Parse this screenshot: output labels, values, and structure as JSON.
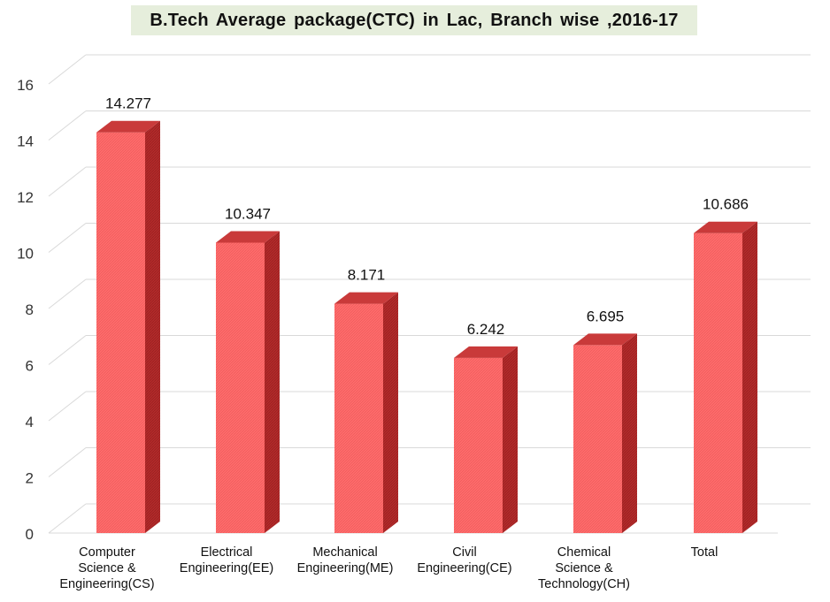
{
  "chart_data": {
    "type": "bar",
    "title": "B.Tech Average  package(CTC)  in  Lac,  Branch  wise  ,2016-17",
    "categories": [
      [
        "Computer",
        "Science &",
        "Engineering(CS)"
      ],
      [
        "Electrical",
        "Engineering(EE)"
      ],
      [
        "Mechanical",
        "Engineering(ME)"
      ],
      [
        "Civil",
        "Engineering(CE)"
      ],
      [
        "Chemical",
        "Science &",
        "Technology(CH)"
      ],
      [
        "Total"
      ]
    ],
    "values": [
      14.277,
      10.347,
      8.171,
      6.242,
      6.695,
      10.686
    ],
    "value_labels": [
      "14.277",
      "10.347",
      "8.171",
      "6.242",
      "6.695",
      "10.686"
    ],
    "ylim": [
      0,
      16
    ],
    "yticks": [
      0,
      2,
      4,
      6,
      8,
      10,
      12,
      14,
      16
    ],
    "grid": true,
    "style": "3d-column",
    "colors": {
      "bar_front": "#ff6b6b",
      "bar_side": "#b22a2a",
      "bar_top": "#c93a3a",
      "grid": "#d9d9d9"
    }
  }
}
